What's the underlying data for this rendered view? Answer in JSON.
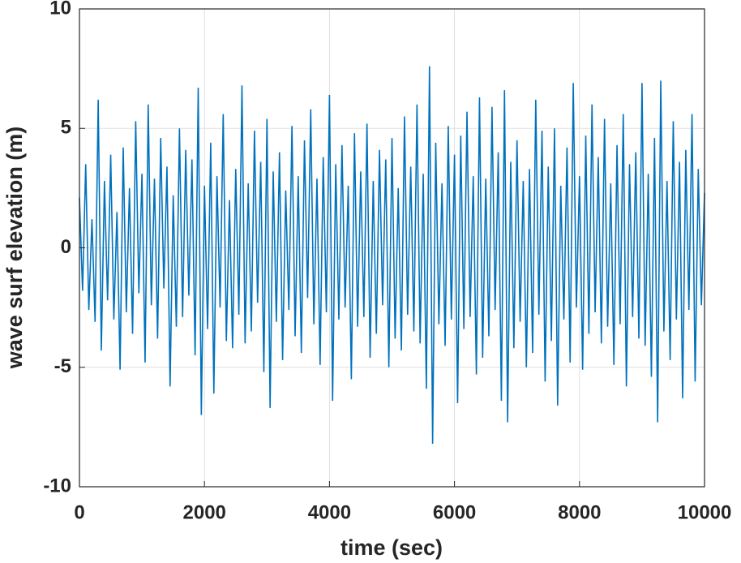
{
  "chart_data": {
    "type": "line",
    "xlabel": "time (sec)",
    "ylabel": "wave surf elevation (m)",
    "xlim": [
      0,
      10000
    ],
    "xticks": [
      0,
      2000,
      4000,
      6000,
      8000,
      10000
    ],
    "ylim": [
      -10,
      10
    ],
    "yticks": [
      -10,
      -5,
      0,
      5,
      10
    ],
    "grid": true,
    "x": [
      0,
      50,
      100,
      150,
      200,
      250,
      300,
      350,
      400,
      450,
      500,
      550,
      600,
      650,
      700,
      750,
      800,
      850,
      900,
      950,
      1000,
      1050,
      1100,
      1150,
      1200,
      1250,
      1300,
      1350,
      1400,
      1450,
      1500,
      1550,
      1600,
      1650,
      1700,
      1750,
      1800,
      1850,
      1900,
      1950,
      2000,
      2050,
      2100,
      2150,
      2200,
      2250,
      2300,
      2350,
      2400,
      2450,
      2500,
      2550,
      2600,
      2650,
      2700,
      2750,
      2800,
      2850,
      2900,
      2950,
      3000,
      3050,
      3100,
      3150,
      3200,
      3250,
      3300,
      3350,
      3400,
      3450,
      3500,
      3550,
      3600,
      3650,
      3700,
      3750,
      3800,
      3850,
      3900,
      3950,
      4000,
      4050,
      4100,
      4150,
      4200,
      4250,
      4300,
      4350,
      4400,
      4450,
      4500,
      4550,
      4600,
      4650,
      4700,
      4750,
      4800,
      4850,
      4900,
      4950,
      5000,
      5050,
      5100,
      5150,
      5200,
      5250,
      5300,
      5350,
      5400,
      5450,
      5500,
      5550,
      5600,
      5650,
      5700,
      5750,
      5800,
      5850,
      5900,
      5950,
      6000,
      6050,
      6100,
      6150,
      6200,
      6250,
      6300,
      6350,
      6400,
      6450,
      6500,
      6550,
      6600,
      6650,
      6700,
      6750,
      6800,
      6850,
      6900,
      6950,
      7000,
      7050,
      7100,
      7150,
      7200,
      7250,
      7300,
      7350,
      7400,
      7450,
      7500,
      7550,
      7600,
      7650,
      7700,
      7750,
      7800,
      7850,
      7900,
      7950,
      8000,
      8050,
      8100,
      8150,
      8200,
      8250,
      8300,
      8350,
      8400,
      8450,
      8500,
      8550,
      8600,
      8650,
      8700,
      8750,
      8800,
      8850,
      8900,
      8950,
      9000,
      9050,
      9100,
      9150,
      9200,
      9250,
      9300,
      9350,
      9400,
      9450,
      9500,
      9550,
      9600,
      9650,
      9700,
      9750,
      9800,
      9850,
      9900,
      9950,
      10000
    ],
    "series": [
      {
        "color": "#0072bd",
        "values": [
          2.1,
          -1.8,
          3.5,
          -2.6,
          1.2,
          -3.1,
          6.2,
          -4.3,
          2.8,
          -2.2,
          3.9,
          -3.0,
          1.5,
          -5.1,
          4.2,
          -2.7,
          2.5,
          -3.6,
          5.3,
          -1.9,
          3.1,
          -4.8,
          6.0,
          -2.4,
          2.9,
          -3.8,
          4.6,
          -1.7,
          3.4,
          -5.8,
          2.2,
          -3.3,
          5.0,
          -2.9,
          4.1,
          -2.0,
          3.7,
          -4.5,
          6.7,
          -7.0,
          2.6,
          -3.4,
          4.4,
          -6.1,
          3.0,
          -2.5,
          5.6,
          -3.9,
          2.0,
          -4.2,
          3.3,
          -2.8,
          6.8,
          -4.0,
          2.7,
          -3.5,
          4.9,
          -2.3,
          3.6,
          -5.2,
          5.4,
          -6.7,
          3.2,
          -3.1,
          4.0,
          -4.7,
          2.4,
          -2.6,
          5.1,
          -3.7,
          3.0,
          -4.4,
          4.5,
          -2.1,
          5.8,
          -3.2,
          2.9,
          -4.9,
          3.8,
          -2.7,
          6.4,
          -6.4,
          3.5,
          -3.0,
          4.3,
          -2.5,
          2.6,
          -5.5,
          4.8,
          -3.3,
          3.2,
          -2.9,
          5.2,
          -4.6,
          2.8,
          -3.6,
          4.1,
          -2.4,
          3.7,
          -5.0,
          4.6,
          -3.8,
          2.5,
          -4.3,
          5.5,
          -2.8,
          3.4,
          -3.5,
          6.0,
          -4.0,
          3.1,
          -5.9,
          7.6,
          -8.2,
          4.4,
          -3.2,
          2.7,
          -4.1,
          5.1,
          -3.0,
          3.9,
          -6.5,
          4.7,
          -3.4,
          5.7,
          -2.9,
          3.0,
          -5.3,
          6.3,
          -4.6,
          2.9,
          -3.7,
          5.9,
          -2.6,
          4.0,
          -6.4,
          6.6,
          -7.3,
          3.6,
          -4.2,
          4.5,
          -3.1,
          2.8,
          -5.0,
          3.3,
          -4.4,
          6.2,
          -2.8,
          4.9,
          -5.6,
          3.4,
          -3.9,
          5.0,
          -6.6,
          2.6,
          -3.0,
          4.2,
          -4.8,
          6.9,
          -2.5,
          3.0,
          -5.1,
          4.7,
          -3.6,
          6.0,
          -2.7,
          3.8,
          -4.0,
          5.4,
          -3.3,
          2.7,
          -4.9,
          4.3,
          -3.2,
          5.6,
          -5.8,
          3.5,
          -2.9,
          4.0,
          -3.8,
          6.9,
          -4.1,
          3.1,
          -5.4,
          4.6,
          -7.3,
          7.0,
          -3.5,
          2.8,
          -4.7,
          5.3,
          -3.0,
          3.6,
          -6.3,
          4.1,
          -2.6,
          5.6,
          -5.6,
          3.3,
          -2.4,
          2.3
        ]
      }
    ]
  }
}
